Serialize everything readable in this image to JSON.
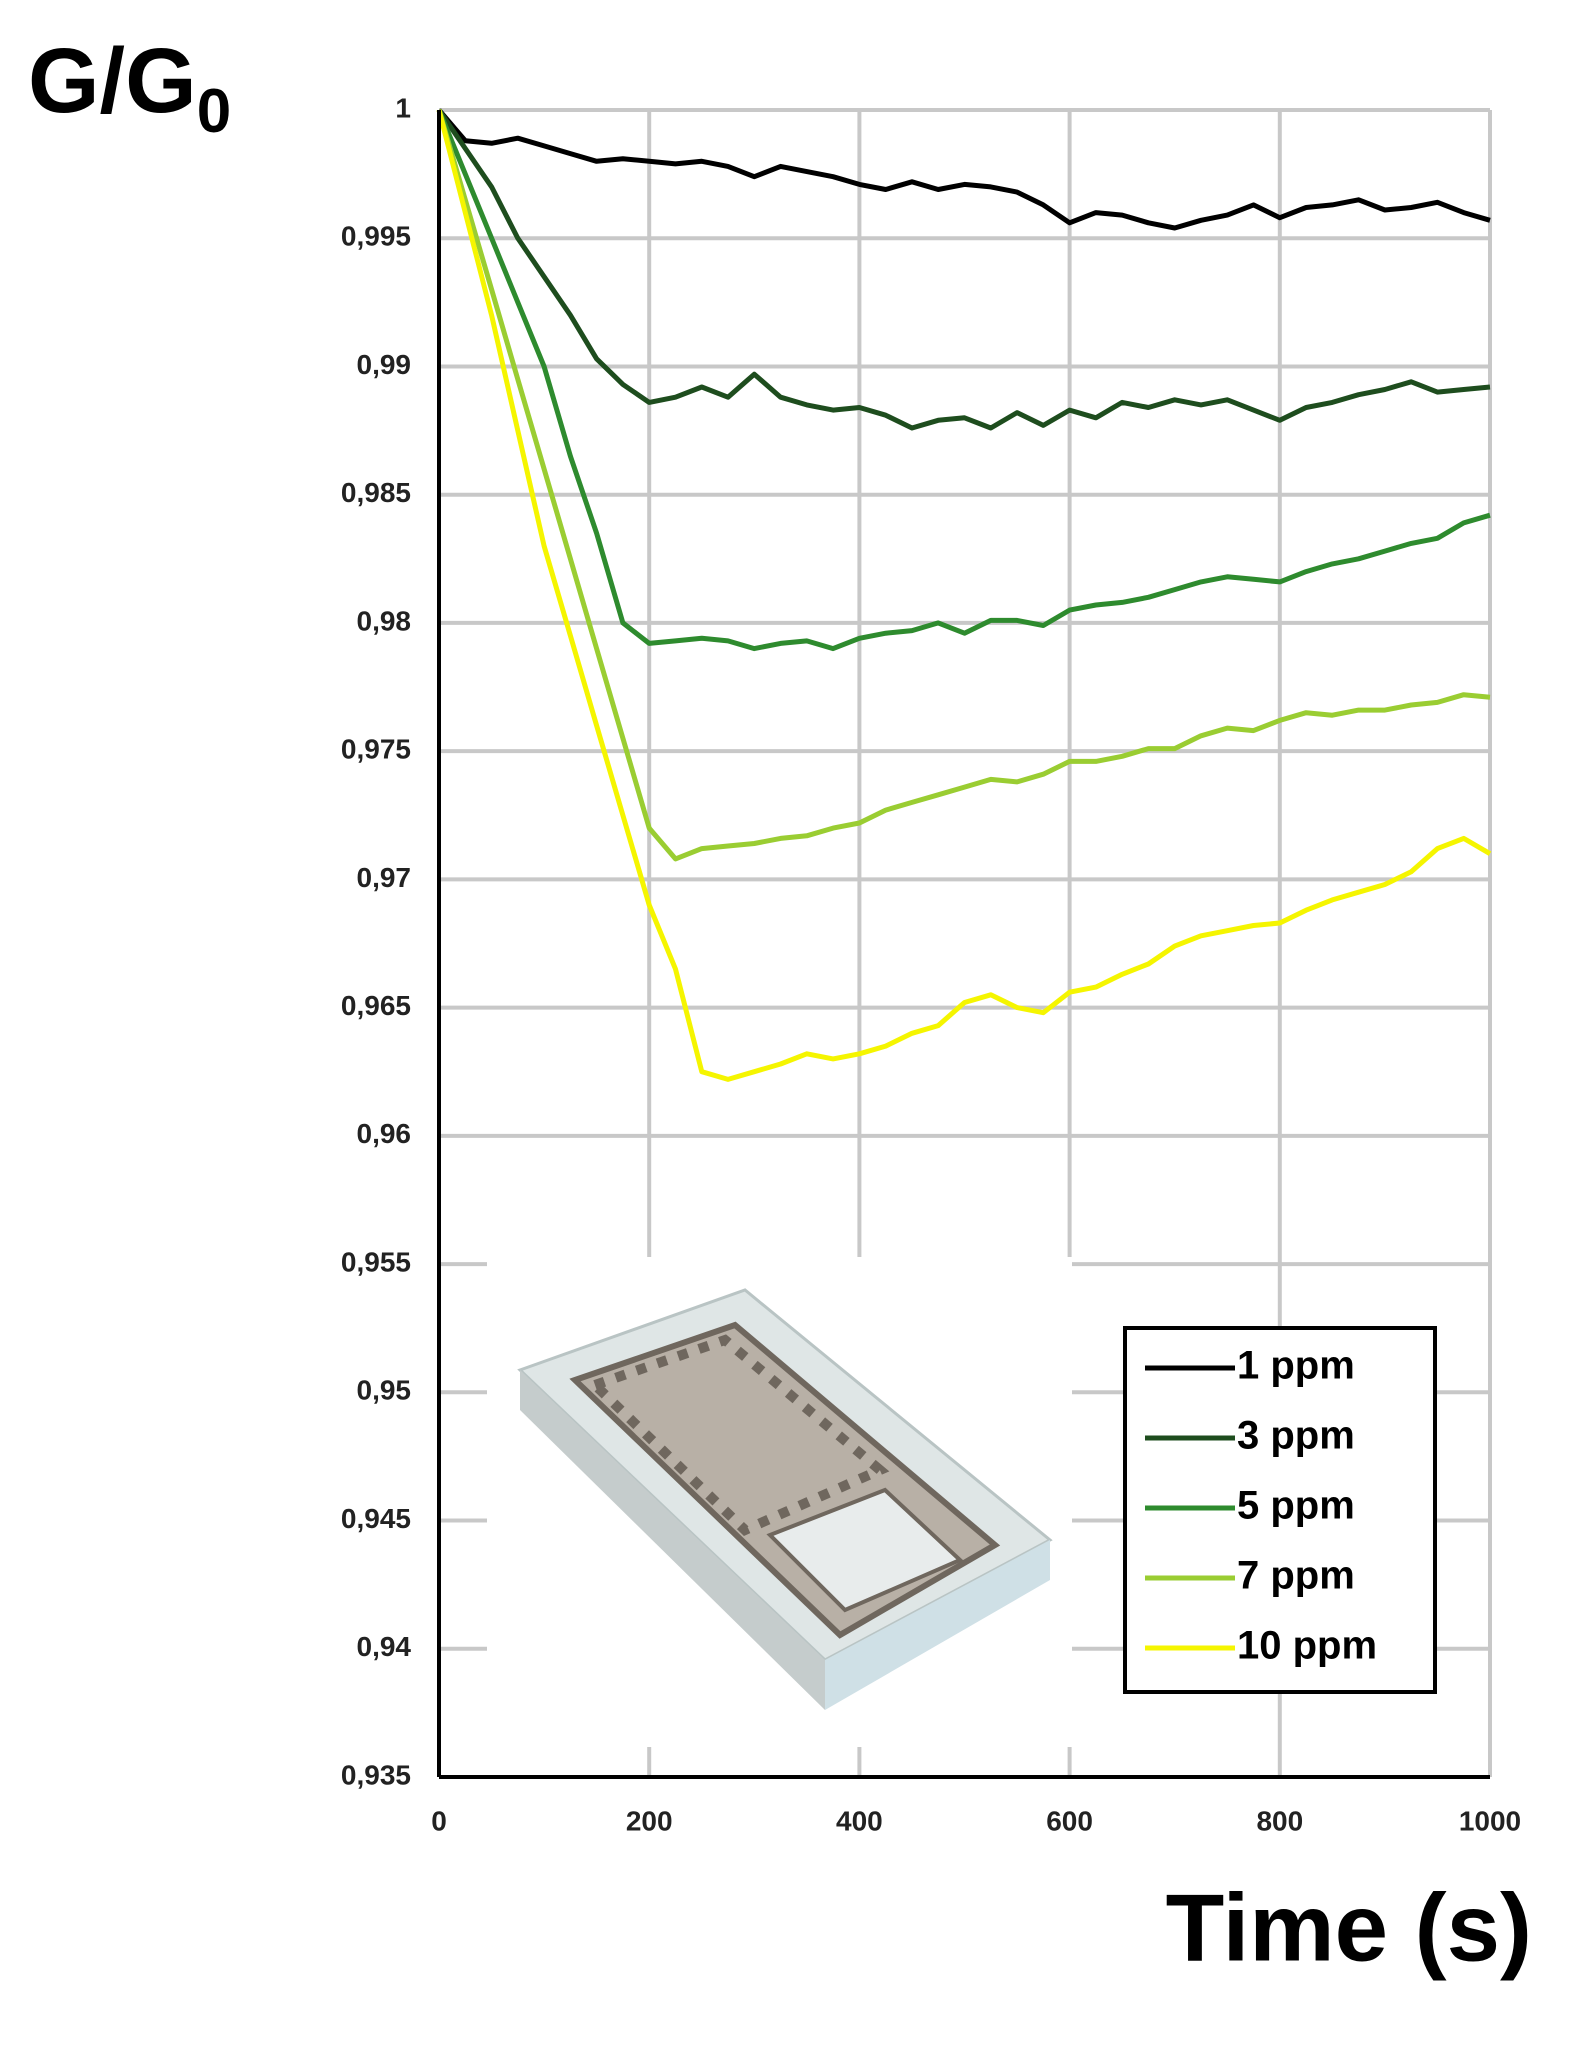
{
  "chart_data": {
    "type": "line",
    "ylabel": "G/G",
    "ylabel_sub": "0",
    "xlabel": "Time (s)",
    "x": [
      0,
      25,
      50,
      75,
      100,
      125,
      150,
      175,
      200,
      225,
      250,
      275,
      300,
      325,
      350,
      375,
      400,
      425,
      450,
      475,
      500,
      525,
      550,
      575,
      600,
      625,
      650,
      675,
      700,
      725,
      750,
      775,
      800,
      825,
      850,
      875,
      900,
      925,
      950,
      975,
      1000
    ],
    "series": [
      {
        "name": "1 ppm",
        "color": "#000000",
        "values": [
          1,
          0.9988,
          0.9987,
          0.9989,
          0.9986,
          0.9983,
          0.998,
          0.9981,
          0.998,
          0.9979,
          0.998,
          0.9978,
          0.9974,
          0.9978,
          0.9976,
          0.9974,
          0.9971,
          0.9969,
          0.9972,
          0.9969,
          0.9971,
          0.997,
          0.9968,
          0.9963,
          0.9956,
          0.996,
          0.9959,
          0.9956,
          0.9954,
          0.9957,
          0.9959,
          0.9963,
          0.9958,
          0.9962,
          0.9963,
          0.9965,
          0.9961,
          0.9962,
          0.9964,
          0.996,
          0.9957
        ]
      },
      {
        "name": "3 ppm",
        "color": "#1e4d1e",
        "values": [
          1,
          0.9985,
          0.997,
          0.995,
          0.9935,
          0.992,
          0.9903,
          0.9893,
          0.9886,
          0.9888,
          0.9892,
          0.9888,
          0.9897,
          0.9888,
          0.9885,
          0.9883,
          0.9884,
          0.9881,
          0.9876,
          0.9879,
          0.988,
          0.9876,
          0.9882,
          0.9877,
          0.9883,
          0.988,
          0.9886,
          0.9884,
          0.9887,
          0.9885,
          0.9887,
          0.9883,
          0.9879,
          0.9884,
          0.9886,
          0.9889,
          0.9891,
          0.9894,
          0.989,
          0.9891,
          0.9892
        ]
      },
      {
        "name": "5 ppm",
        "color": "#2e8b2e",
        "values": [
          1,
          0.9975,
          0.995,
          0.9925,
          0.99,
          0.9865,
          0.9835,
          0.98,
          0.9792,
          0.9793,
          0.9794,
          0.9793,
          0.979,
          0.9792,
          0.9793,
          0.979,
          0.9794,
          0.9796,
          0.9797,
          0.98,
          0.9796,
          0.9801,
          0.9801,
          0.9799,
          0.9805,
          0.9807,
          0.9808,
          0.981,
          0.9813,
          0.9816,
          0.9818,
          0.9817,
          0.9816,
          0.982,
          0.9823,
          0.9825,
          0.9828,
          0.9831,
          0.9833,
          0.9839,
          0.9842
        ]
      },
      {
        "name": "7 ppm",
        "color": "#9acd32",
        "values": [
          1,
          0.9965,
          0.993,
          0.9895,
          0.986,
          0.9825,
          0.979,
          0.9755,
          0.972,
          0.9708,
          0.9712,
          0.9713,
          0.9714,
          0.9716,
          0.9717,
          0.972,
          0.9722,
          0.9727,
          0.973,
          0.9733,
          0.9736,
          0.9739,
          0.9738,
          0.9741,
          0.9746,
          0.9746,
          0.9748,
          0.9751,
          0.9751,
          0.9756,
          0.9759,
          0.9758,
          0.9762,
          0.9765,
          0.9764,
          0.9766,
          0.9766,
          0.9768,
          0.9769,
          0.9772,
          0.9771
        ]
      },
      {
        "name": "10 ppm",
        "color": "#f5f500",
        "values": [
          1,
          0.996,
          0.992,
          0.9875,
          0.983,
          0.9795,
          0.976,
          0.9725,
          0.969,
          0.9665,
          0.9625,
          0.9622,
          0.9625,
          0.9628,
          0.9632,
          0.963,
          0.9632,
          0.9635,
          0.964,
          0.9643,
          0.9652,
          0.9655,
          0.965,
          0.9648,
          0.9656,
          0.9658,
          0.9663,
          0.9667,
          0.9674,
          0.9678,
          0.968,
          0.9682,
          0.9683,
          0.9688,
          0.9692,
          0.9695,
          0.9698,
          0.9703,
          0.9712,
          0.9716,
          0.971
        ]
      }
    ],
    "xlim": [
      0,
      1000
    ],
    "xticks": [
      0,
      200,
      400,
      600,
      800,
      1000
    ],
    "ylim": [
      0.935,
      1
    ],
    "yticks": [
      {
        "value": 0.935,
        "label": "0,935"
      },
      {
        "value": 0.94,
        "label": "0,94"
      },
      {
        "value": 0.945,
        "label": "0,945"
      },
      {
        "value": 0.95,
        "label": "0,95"
      },
      {
        "value": 0.955,
        "label": "0,955"
      },
      {
        "value": 0.96,
        "label": "0,96"
      },
      {
        "value": 0.965,
        "label": "0,965"
      },
      {
        "value": 0.97,
        "label": "0,97"
      },
      {
        "value": 0.975,
        "label": "0,975"
      },
      {
        "value": 0.98,
        "label": "0,98"
      },
      {
        "value": 0.985,
        "label": "0,985"
      },
      {
        "value": 0.99,
        "label": "0,99"
      },
      {
        "value": 0.995,
        "label": "0,995"
      },
      1
    ],
    "grid": true,
    "legend": "lower right"
  }
}
